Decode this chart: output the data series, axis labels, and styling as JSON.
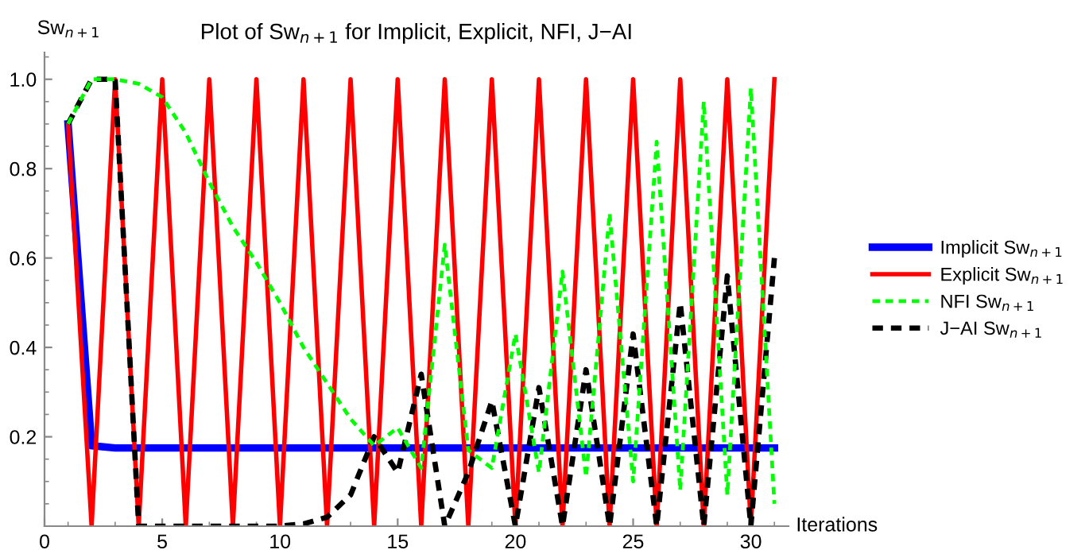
{
  "chart_data": {
    "type": "line",
    "title": "Plot of Sw$_{n+1}$ for Implicit, Explicit, NFI, J−AI",
    "xlabel": "Iterations",
    "ylabel": "Sw$_{n+1}$",
    "x": [
      1,
      2,
      3,
      4,
      5,
      6,
      7,
      8,
      9,
      10,
      11,
      12,
      13,
      14,
      15,
      16,
      17,
      18,
      19,
      20,
      21,
      22,
      23,
      24,
      25,
      26,
      27,
      28,
      29,
      30,
      31
    ],
    "series": [
      {
        "name": "Implicit Sw$_{n+1}$",
        "color": "#0000ff",
        "line_style": "solid",
        "values": [
          0.9,
          0.18,
          0.175,
          0.175,
          0.175,
          0.175,
          0.175,
          0.175,
          0.175,
          0.175,
          0.175,
          0.175,
          0.175,
          0.175,
          0.175,
          0.175,
          0.175,
          0.175,
          0.175,
          0.175,
          0.175,
          0.175,
          0.175,
          0.175,
          0.175,
          0.175,
          0.175,
          0.175,
          0.175,
          0.175,
          0.175
        ]
      },
      {
        "name": "Explicit Sw$_{n+1}$",
        "color": "#ff0000",
        "line_style": "solid",
        "values": [
          0.9,
          0,
          1,
          0,
          1,
          0,
          1,
          0,
          1,
          0,
          1,
          0,
          1,
          0,
          1,
          0,
          1,
          0,
          1,
          0,
          1,
          0,
          1,
          0,
          1,
          0,
          1,
          0,
          1,
          0,
          1
        ]
      },
      {
        "name": "NFI Sw$_{n+1}$",
        "color": "#00ff00",
        "line_style": "dashed",
        "values": [
          0.9,
          1,
          1,
          0.99,
          0.96,
          0.88,
          0.77,
          0.67,
          0.59,
          0.5,
          0.4,
          0.32,
          0.24,
          0.18,
          0.22,
          0.13,
          0.63,
          0.17,
          0.13,
          0.43,
          0.12,
          0.57,
          0.11,
          0.7,
          0.1,
          0.86,
          0.08,
          0.95,
          0.07,
          0.98,
          0.05
        ]
      },
      {
        "name": "J−AI Sw$_{n+1}$",
        "color": "#000000",
        "line_style": "dashed",
        "values": [
          0.9,
          1,
          1,
          0,
          0,
          0,
          0,
          0,
          0,
          0,
          0.005,
          0.02,
          0.07,
          0.2,
          0.12,
          0.34,
          0,
          0.12,
          0.28,
          0,
          0.31,
          0,
          0.35,
          0,
          0.43,
          0,
          0.5,
          0,
          0.56,
          0,
          0.6
        ]
      }
    ],
    "xlim": [
      0,
      31.6
    ],
    "ylim": [
      0,
      1.06
    ],
    "xticks": [
      0,
      5,
      10,
      15,
      20,
      25,
      30
    ],
    "yticks": [
      {
        "value": 0.2,
        "label": "0.2"
      },
      {
        "value": 0.4,
        "label": "0.4"
      },
      {
        "value": 0.6,
        "label": "0.6"
      },
      {
        "value": 0.8,
        "label": "0.8"
      },
      {
        "value": 1,
        "label": "1.0"
      }
    ],
    "grid": false,
    "legend": "right",
    "marker": "none"
  }
}
